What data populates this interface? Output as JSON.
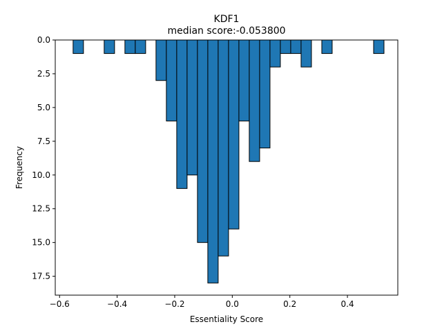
{
  "chart_data": {
    "type": "bar",
    "title": "KDF1",
    "subtitle": "median score:-0.053800",
    "xlabel": "Essentiality Score",
    "ylabel": "Frequency",
    "xlim": [
      -0.615,
      0.575
    ],
    "ylim": [
      0,
      18.9
    ],
    "y_inverted": true,
    "bin_width": 0.036,
    "x_ticks": [
      -0.6,
      -0.4,
      -0.2,
      0.0,
      0.2,
      0.4
    ],
    "x_tick_labels": [
      "−0.6",
      "−0.4",
      "−0.2",
      "0.0",
      "0.2",
      "0.4"
    ],
    "y_ticks": [
      0.0,
      2.5,
      5.0,
      7.5,
      10.0,
      12.5,
      15.0,
      17.5
    ],
    "y_tick_labels": [
      "0.0",
      "2.5",
      "5.0",
      "7.5",
      "10.0",
      "12.5",
      "15.0",
      "17.5"
    ],
    "bins": [
      {
        "x": -0.553,
        "value": 1
      },
      {
        "x": -0.445,
        "value": 1
      },
      {
        "x": -0.373,
        "value": 1
      },
      {
        "x": -0.337,
        "value": 1
      },
      {
        "x": -0.265,
        "value": 3
      },
      {
        "x": -0.229,
        "value": 6
      },
      {
        "x": -0.193,
        "value": 11
      },
      {
        "x": -0.157,
        "value": 10
      },
      {
        "x": -0.121,
        "value": 15
      },
      {
        "x": -0.085,
        "value": 18
      },
      {
        "x": -0.049,
        "value": 16
      },
      {
        "x": -0.013,
        "value": 14
      },
      {
        "x": 0.023,
        "value": 6
      },
      {
        "x": 0.059,
        "value": 9
      },
      {
        "x": 0.095,
        "value": 8
      },
      {
        "x": 0.131,
        "value": 2
      },
      {
        "x": 0.167,
        "value": 1
      },
      {
        "x": 0.203,
        "value": 1
      },
      {
        "x": 0.239,
        "value": 2
      },
      {
        "x": 0.311,
        "value": 1
      },
      {
        "x": 0.491,
        "value": 1
      }
    ],
    "grid": false,
    "bar_color": "#1f77b4",
    "edge_color": "#000000"
  }
}
